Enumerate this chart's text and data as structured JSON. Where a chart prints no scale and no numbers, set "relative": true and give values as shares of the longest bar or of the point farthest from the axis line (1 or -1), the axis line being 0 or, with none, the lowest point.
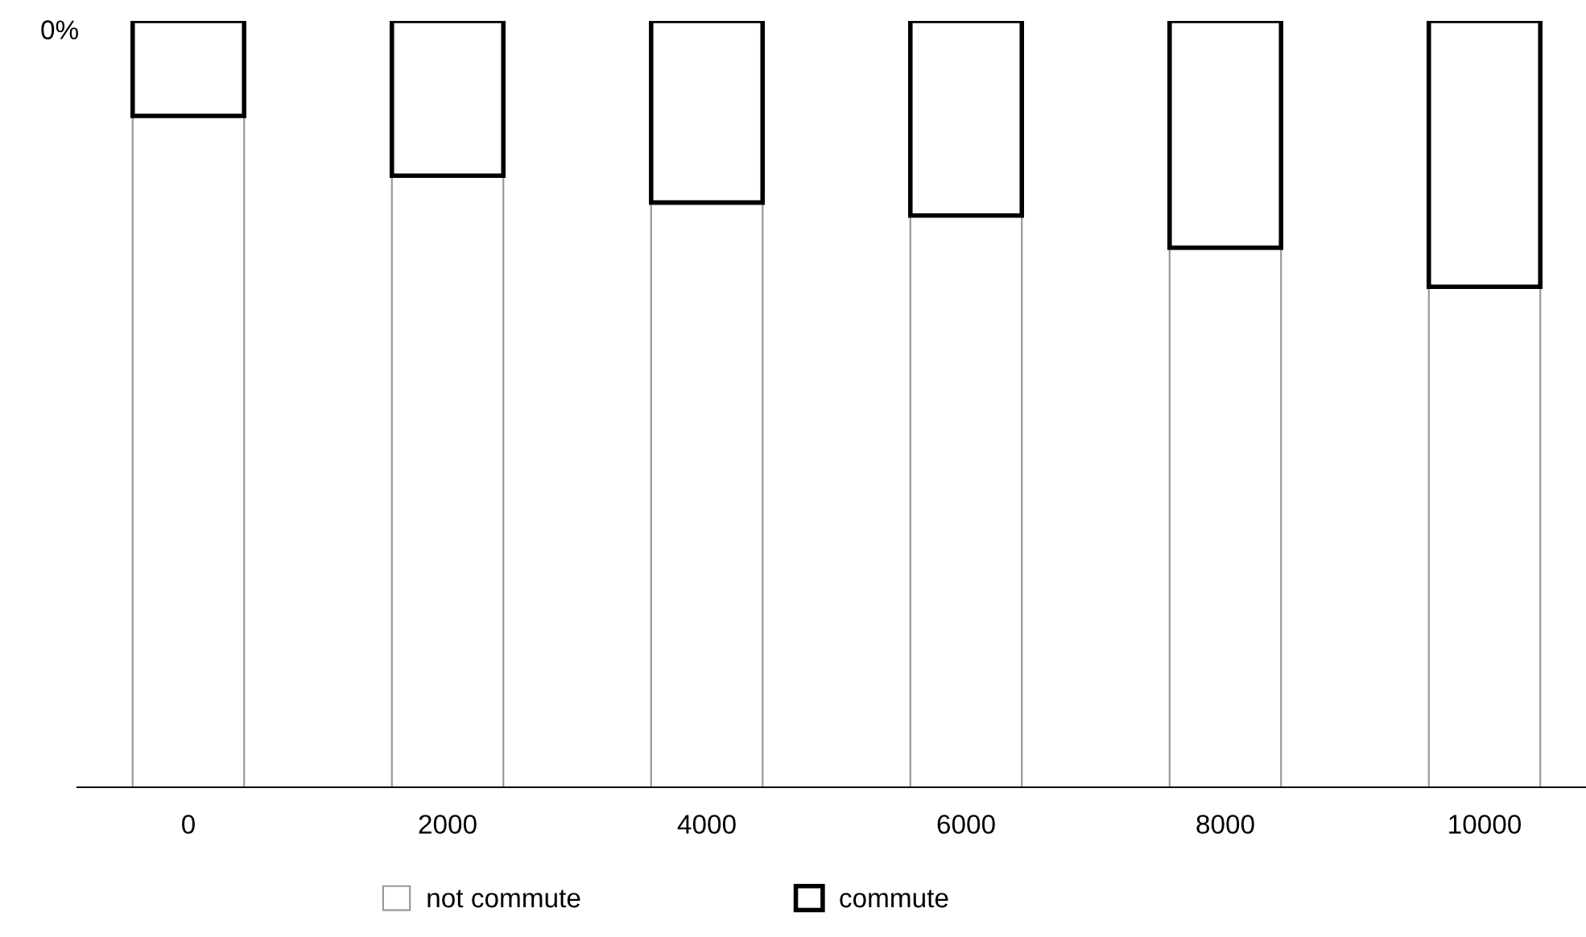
{
  "chart_data": {
    "type": "bar",
    "stacked": true,
    "relative": true,
    "categories": [
      "0",
      "2000",
      "4000",
      "6000",
      "8000",
      "10000"
    ],
    "series": [
      {
        "name": "not commute",
        "color": "#999999",
        "values": [
          0.876,
          0.798,
          0.763,
          0.746,
          0.704,
          0.653
        ]
      },
      {
        "name": "commute",
        "color": "#000000",
        "values": [
          0.124,
          0.202,
          0.237,
          0.254,
          0.296,
          0.347
        ]
      }
    ],
    "annotations": [
      "0%"
    ],
    "legend": "bottom",
    "grid": false
  }
}
